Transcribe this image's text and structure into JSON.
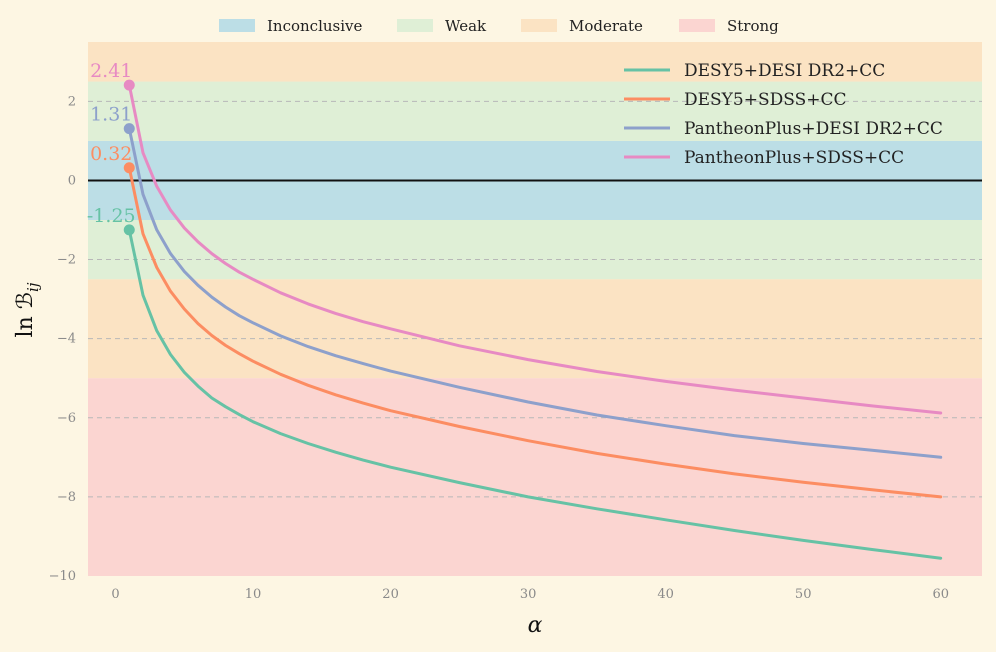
{
  "chart_data": {
    "type": "line",
    "xlabel": "α",
    "ylabel": "ln ℬ_ij",
    "ylabel_main": "ln ℬ",
    "ylabel_sub": "ij",
    "xlim": [
      -2,
      63
    ],
    "ylim": [
      -10,
      3.5
    ],
    "x_ticks": [
      0,
      10,
      20,
      30,
      40,
      50,
      60
    ],
    "y_ticks": [
      -10,
      -8,
      -6,
      -4,
      -2,
      0,
      2
    ],
    "grid": true,
    "background_bands": [
      {
        "name": "Inconclusive",
        "from": -1,
        "to": 1,
        "color": "#bcdee6"
      },
      {
        "name": "Weak",
        "from": 1,
        "to": 2.5,
        "color": "#dfefd6"
      },
      {
        "name": "Weak",
        "from": -2.5,
        "to": -1,
        "color": "#dfefd6"
      },
      {
        "name": "Moderate",
        "from": 2.5,
        "to": 3.5,
        "color": "#fbe3c3"
      },
      {
        "name": "Moderate",
        "from": -5,
        "to": -2.5,
        "color": "#fbe3c3"
      },
      {
        "name": "Strong",
        "from": -10,
        "to": -5,
        "color": "#fbd5d1"
      }
    ],
    "band_legend": [
      {
        "label": "Inconclusive",
        "color": "#bcdee6"
      },
      {
        "label": "Weak",
        "color": "#dfefd6"
      },
      {
        "label": "Moderate",
        "color": "#fbe3c3"
      },
      {
        "label": "Strong",
        "color": "#fbd5d1"
      }
    ],
    "legend_placement": "top-right",
    "x": [
      1,
      2,
      3,
      4,
      5,
      6,
      7,
      8,
      9,
      10,
      12,
      14,
      16,
      18,
      20,
      25,
      30,
      35,
      40,
      45,
      50,
      55,
      60
    ],
    "series": [
      {
        "name": "DESY5+DESI DR2+CC",
        "color": "#66c2a5",
        "values": [
          -1.25,
          -2.9,
          -3.8,
          -4.4,
          -4.85,
          -5.2,
          -5.5,
          -5.72,
          -5.92,
          -6.1,
          -6.4,
          -6.65,
          -6.87,
          -7.07,
          -7.25,
          -7.64,
          -8.0,
          -8.3,
          -8.58,
          -8.85,
          -9.1,
          -9.33,
          -9.55
        ],
        "endpoint_label": "-1.25"
      },
      {
        "name": "DESY5+SDSS+CC",
        "color": "#fc8d62",
        "values": [
          0.32,
          -1.35,
          -2.2,
          -2.8,
          -3.25,
          -3.62,
          -3.92,
          -4.17,
          -4.38,
          -4.57,
          -4.9,
          -5.18,
          -5.42,
          -5.63,
          -5.82,
          -6.22,
          -6.58,
          -6.9,
          -7.17,
          -7.42,
          -7.63,
          -7.82,
          -8.0
        ],
        "endpoint_label": "0.32"
      },
      {
        "name": "PantheonPlus+DESI DR2+CC",
        "color": "#8da0cb",
        "values": [
          1.31,
          -0.35,
          -1.25,
          -1.85,
          -2.3,
          -2.65,
          -2.95,
          -3.2,
          -3.42,
          -3.6,
          -3.93,
          -4.2,
          -4.43,
          -4.63,
          -4.82,
          -5.23,
          -5.6,
          -5.93,
          -6.2,
          -6.45,
          -6.65,
          -6.82,
          -7.0
        ],
        "endpoint_label": "1.31"
      },
      {
        "name": "PantheonPlus+SDSS+CC",
        "color": "#e78ac3",
        "values": [
          2.41,
          0.7,
          -0.15,
          -0.75,
          -1.2,
          -1.55,
          -1.85,
          -2.1,
          -2.32,
          -2.5,
          -2.84,
          -3.12,
          -3.36,
          -3.57,
          -3.75,
          -4.18,
          -4.53,
          -4.83,
          -5.08,
          -5.3,
          -5.5,
          -5.7,
          -5.88
        ],
        "endpoint_label": "2.41"
      }
    ]
  }
}
